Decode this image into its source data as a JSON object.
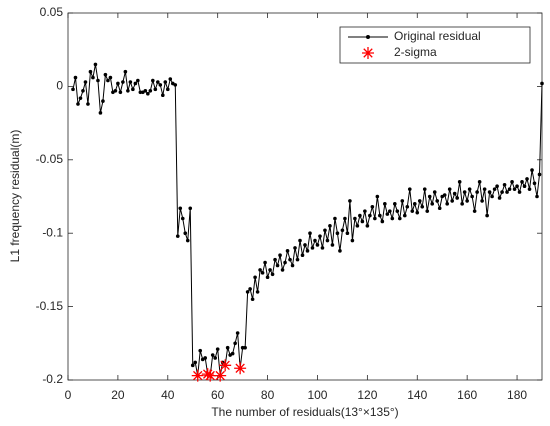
{
  "chart_data": {
    "type": "line",
    "xlabel": "The number of residuals(13°×135°)",
    "ylabel": "L1 frequency residual(m)",
    "xlim": [
      0,
      190
    ],
    "ylim": [
      -0.2,
      0.05
    ],
    "xticks": [
      0,
      20,
      40,
      60,
      80,
      100,
      120,
      140,
      160,
      180
    ],
    "yticks": [
      -0.2,
      -0.15,
      -0.1,
      -0.05,
      0,
      0.05
    ],
    "legend": "upper right",
    "grid": false,
    "series": [
      {
        "name": "Original residual",
        "color": "#000000",
        "marker": "dot",
        "line": true,
        "x": [
          2,
          3,
          4,
          5,
          6,
          7,
          8,
          9,
          10,
          11,
          12,
          13,
          14,
          15,
          16,
          17,
          18,
          19,
          20,
          21,
          22,
          23,
          24,
          25,
          26,
          27,
          28,
          29,
          30,
          31,
          32,
          33,
          34,
          35,
          36,
          37,
          38,
          39,
          40,
          41,
          42,
          43,
          44,
          45,
          46,
          47,
          48,
          49,
          50,
          51,
          52,
          53,
          54,
          55,
          56,
          57,
          58,
          59,
          60,
          61,
          62,
          63,
          64,
          65,
          66,
          67,
          68,
          69,
          70,
          71,
          72,
          73,
          74,
          75,
          76,
          77,
          78,
          79,
          80,
          81,
          82,
          83,
          84,
          85,
          86,
          87,
          88,
          89,
          90,
          91,
          92,
          93,
          94,
          95,
          96,
          97,
          98,
          99,
          100,
          101,
          102,
          103,
          104,
          105,
          106,
          107,
          108,
          109,
          110,
          111,
          112,
          113,
          114,
          115,
          116,
          117,
          118,
          119,
          120,
          121,
          122,
          123,
          124,
          125,
          126,
          127,
          128,
          129,
          130,
          131,
          132,
          133,
          134,
          135,
          136,
          137,
          138,
          139,
          140,
          141,
          142,
          143,
          144,
          145,
          146,
          147,
          148,
          149,
          150,
          151,
          152,
          153,
          154,
          155,
          156,
          157,
          158,
          159,
          160,
          161,
          162,
          163,
          164,
          165,
          166,
          167,
          168,
          169,
          170,
          171,
          172,
          173,
          174,
          175,
          176,
          177,
          178,
          179,
          180,
          181,
          182,
          183,
          184,
          185,
          186,
          187,
          188,
          189,
          190
        ],
        "values": [
          -0.002,
          0.006,
          -0.012,
          -0.008,
          -0.003,
          0.003,
          -0.012,
          0.01,
          0.006,
          0.015,
          0.004,
          -0.018,
          -0.01,
          0.008,
          0.004,
          0.006,
          -0.004,
          -0.003,
          0.002,
          -0.004,
          0.003,
          0.01,
          -0.003,
          0.003,
          -0.002,
          0.002,
          0.004,
          -0.004,
          -0.004,
          -0.003,
          -0.005,
          -0.003,
          0.004,
          -0.002,
          0.003,
          0.001,
          -0.006,
          0.003,
          -0.002,
          0.005,
          0.002,
          0.001,
          -0.102,
          -0.083,
          -0.09,
          -0.1,
          -0.105,
          -0.083,
          -0.19,
          -0.188,
          -0.197,
          -0.18,
          -0.186,
          -0.185,
          -0.196,
          -0.197,
          -0.183,
          -0.185,
          -0.179,
          -0.197,
          -0.188,
          -0.19,
          -0.178,
          -0.183,
          -0.182,
          -0.175,
          -0.168,
          -0.192,
          -0.178,
          -0.178,
          -0.14,
          -0.138,
          -0.145,
          -0.13,
          -0.14,
          -0.125,
          -0.127,
          -0.12,
          -0.13,
          -0.125,
          -0.128,
          -0.118,
          -0.122,
          -0.115,
          -0.125,
          -0.12,
          -0.112,
          -0.118,
          -0.122,
          -0.11,
          -0.118,
          -0.105,
          -0.115,
          -0.108,
          -0.112,
          -0.1,
          -0.11,
          -0.105,
          -0.108,
          -0.102,
          -0.11,
          -0.098,
          -0.105,
          -0.095,
          -0.108,
          -0.09,
          -0.1,
          -0.112,
          -0.098,
          -0.09,
          -0.1,
          -0.078,
          -0.105,
          -0.09,
          -0.095,
          -0.088,
          -0.092,
          -0.085,
          -0.095,
          -0.088,
          -0.082,
          -0.09,
          -0.075,
          -0.088,
          -0.092,
          -0.08,
          -0.087,
          -0.085,
          -0.09,
          -0.08,
          -0.085,
          -0.09,
          -0.078,
          -0.088,
          -0.082,
          -0.07,
          -0.085,
          -0.08,
          -0.086,
          -0.078,
          -0.082,
          -0.07,
          -0.085,
          -0.075,
          -0.08,
          -0.072,
          -0.078,
          -0.083,
          -0.075,
          -0.074,
          -0.08,
          -0.07,
          -0.078,
          -0.073,
          -0.076,
          -0.065,
          -0.08,
          -0.072,
          -0.078,
          -0.07,
          -0.075,
          -0.085,
          -0.072,
          -0.065,
          -0.078,
          -0.07,
          -0.088,
          -0.072,
          -0.075,
          -0.07,
          -0.068,
          -0.076,
          -0.072,
          -0.067,
          -0.072,
          -0.07,
          -0.065,
          -0.07,
          -0.068,
          -0.072,
          -0.065,
          -0.068,
          -0.063,
          -0.07,
          -0.057,
          -0.066,
          -0.075,
          -0.06,
          0.002
        ]
      },
      {
        "name": "2-sigma",
        "color": "#ff0000",
        "marker": "star",
        "line": false,
        "x": [
          52,
          56,
          57,
          61,
          63,
          69
        ],
        "values": [
          -0.197,
          -0.196,
          -0.197,
          -0.197,
          -0.19,
          -0.192
        ]
      }
    ]
  }
}
